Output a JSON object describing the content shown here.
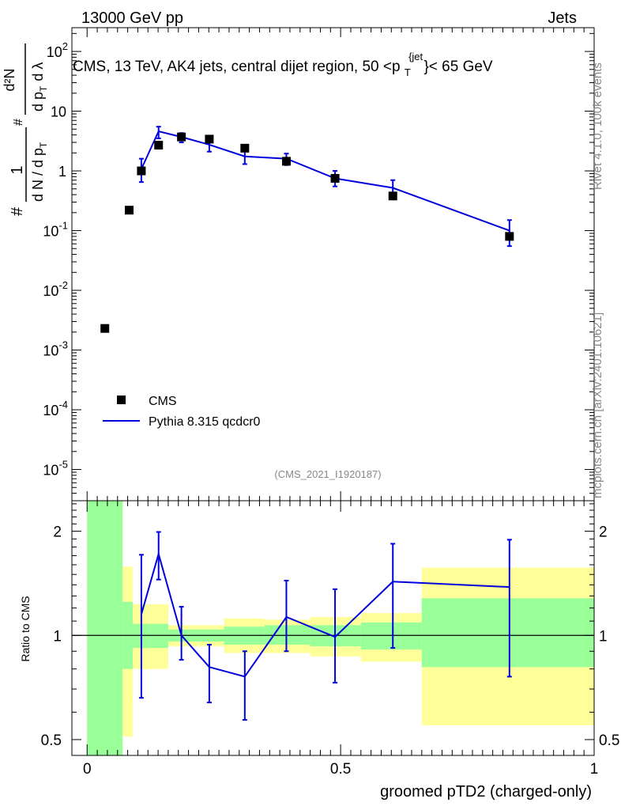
{
  "header": {
    "left": "13000 GeV pp",
    "right": "Jets"
  },
  "side_labels": {
    "rivet": "Rivet 4.1.0,  100k events",
    "mcplots": "mcplots.cern.ch [arXiv:2401.10621]"
  },
  "colors": {
    "data": "#000000",
    "mc": "#0000dd",
    "band_inner": "#99ff99",
    "band_outer": "#ffff99"
  },
  "chart_data": [
    {
      "type": "scatter",
      "title": "CMS, 13 TeV, AK4 jets, central dijet region, 50 <p_T^{jet}< 65 GeV",
      "title_parts": {
        "main": "CMS, 13 TeV, AK4 jets, central dijet region, 50 <p",
        "sub": "T",
        "sup": "{jet",
        "end": "}< 65 GeV"
      },
      "watermark": "(CMS_2021_I1920187)",
      "ylabel": "1/dN/dp_T dN^2/dp_T dλ",
      "ylabel_parts": {
        "hash": "#",
        "one": "1",
        "dn": "d N / d p",
        "t": "T",
        "d2n": "d²N",
        "dpt": "d p",
        "dl": "d λ"
      },
      "yscale": "log",
      "ylim": [
        3e-06,
        250
      ],
      "xlim": [
        -0.03,
        1.0
      ],
      "yticks": [
        {
          "exp": "-5",
          "v": 1e-05
        },
        {
          "exp": "-4",
          "v": 0.0001
        },
        {
          "exp": "-3",
          "v": 0.001
        },
        {
          "exp": "-2",
          "v": 0.01
        },
        {
          "exp": "-1",
          "v": 0.1
        },
        {
          "label": "1",
          "v": 1
        },
        {
          "label": "10",
          "v": 10
        },
        {
          "exp": "2",
          "v": 100
        }
      ],
      "legend": [
        {
          "label": "CMS",
          "kind": "marker"
        },
        {
          "label": "Pythia 8.315 qcdcr0",
          "kind": "line"
        }
      ],
      "series": [
        {
          "name": "CMS",
          "x": [
            0.035,
            0.083,
            0.107,
            0.141,
            0.186,
            0.241,
            0.311,
            0.393,
            0.489,
            0.603,
            0.833
          ],
          "values": [
            0.0023,
            0.22,
            1.0,
            2.7,
            3.7,
            3.4,
            2.4,
            1.45,
            0.75,
            0.38,
            0.08
          ]
        },
        {
          "name": "Pythia 8.315 qcdcr0",
          "x": [
            0.107,
            0.141,
            0.186,
            0.241,
            0.311,
            0.393,
            0.489,
            0.603,
            0.833
          ],
          "values": [
            1.07,
            4.6,
            3.7,
            2.75,
            1.75,
            1.6,
            0.75,
            0.52,
            0.1
          ],
          "err_low": [
            0.65,
            3.5,
            3.0,
            2.1,
            1.3,
            1.25,
            0.55,
            0.37,
            0.055
          ],
          "err_high": [
            1.6,
            5.5,
            4.3,
            3.3,
            2.2,
            1.95,
            1.0,
            0.7,
            0.15
          ]
        }
      ]
    },
    {
      "type": "line",
      "ylabel": "Ratio to CMS",
      "xlabel": "groomed pTD2 (charged-only)",
      "yscale": "log",
      "ylim": [
        0.45,
        2.45
      ],
      "xlim": [
        -0.03,
        1.0
      ],
      "yticks": [
        {
          "label": "0.5",
          "v": 0.5
        },
        {
          "label": "1",
          "v": 1
        },
        {
          "label": "2",
          "v": 2
        }
      ],
      "xticks": [
        {
          "label": "0",
          "v": 0
        },
        {
          "label": "0.5",
          "v": 0.5
        },
        {
          "label": "1",
          "v": 1
        }
      ],
      "bands": [
        {
          "x0": 0.0,
          "x1": 0.07,
          "in_lo": 0.3,
          "in_hi": 3.0,
          "out_lo": 0.3,
          "out_hi": 3.0
        },
        {
          "x0": 0.07,
          "x1": 0.09,
          "in_lo": 0.8,
          "in_hi": 1.25,
          "out_lo": 0.51,
          "out_hi": 1.58
        },
        {
          "x0": 0.09,
          "x1": 0.16,
          "in_lo": 0.92,
          "in_hi": 1.08,
          "out_lo": 0.8,
          "out_hi": 1.23
        },
        {
          "x0": 0.16,
          "x1": 0.27,
          "in_lo": 0.96,
          "in_hi": 1.04,
          "out_lo": 0.93,
          "out_hi": 1.07
        },
        {
          "x0": 0.27,
          "x1": 0.35,
          "in_lo": 0.94,
          "in_hi": 1.06,
          "out_lo": 0.89,
          "out_hi": 1.12
        },
        {
          "x0": 0.35,
          "x1": 0.44,
          "in_lo": 0.94,
          "in_hi": 1.07,
          "out_lo": 0.89,
          "out_hi": 1.11
        },
        {
          "x0": 0.44,
          "x1": 0.54,
          "in_lo": 0.93,
          "in_hi": 1.07,
          "out_lo": 0.87,
          "out_hi": 1.13
        },
        {
          "x0": 0.54,
          "x1": 0.66,
          "in_lo": 0.91,
          "in_hi": 1.09,
          "out_lo": 0.84,
          "out_hi": 1.16
        },
        {
          "x0": 0.66,
          "x1": 1.0,
          "in_lo": 0.81,
          "in_hi": 1.28,
          "out_lo": 0.55,
          "out_hi": 1.57
        }
      ],
      "series": [
        {
          "name": "Pythia 8.315 qcdcr0",
          "x": [
            0.107,
            0.141,
            0.186,
            0.241,
            0.311,
            0.393,
            0.489,
            0.603,
            0.833
          ],
          "values": [
            1.15,
            1.72,
            1.0,
            0.81,
            0.76,
            1.13,
            0.99,
            1.43,
            1.38
          ],
          "err_low": [
            0.66,
            1.45,
            0.85,
            0.64,
            0.57,
            0.9,
            0.73,
            0.92,
            0.76
          ],
          "err_high": [
            1.71,
            1.99,
            1.21,
            0.94,
            0.9,
            1.44,
            1.36,
            1.84,
            1.89
          ]
        }
      ]
    }
  ]
}
